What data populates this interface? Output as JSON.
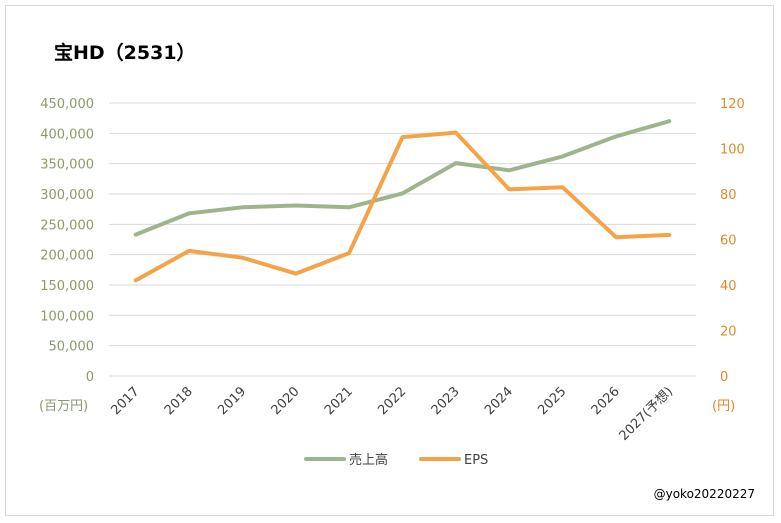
{
  "title": "宝HD（2531）",
  "credit": "@yoko20220227",
  "colors": {
    "sales": "#9fb48c",
    "eps": "#f5a349",
    "left_axis_text": "#8c9a6a",
    "right_axis_text": "#e08a2a",
    "grid": "#d9d9d9"
  },
  "chart_data": {
    "type": "line",
    "categories": [
      "2017",
      "2018",
      "2019",
      "2020",
      "2021",
      "2022",
      "2023",
      "2024",
      "2025",
      "2026",
      "2027(予想)"
    ],
    "series": [
      {
        "name": "売上高",
        "axis": "left",
        "values": [
          233000,
          268000,
          278000,
          281000,
          278000,
          301000,
          351000,
          339000,
          362000,
          395000,
          420000
        ]
      },
      {
        "name": "EPS",
        "axis": "right",
        "values": [
          42,
          55,
          52,
          45,
          54,
          105,
          107,
          82,
          83,
          61,
          62
        ]
      }
    ],
    "y_left": {
      "unit": "(百万円)",
      "ylim": [
        0,
        450000
      ],
      "ticks": [
        "0",
        "50,000",
        "100,000",
        "150,000",
        "200,000",
        "250,000",
        "300,000",
        "350,000",
        "400,000",
        "450,000"
      ]
    },
    "y_right": {
      "unit": "(円)",
      "ylim": [
        0,
        120
      ],
      "ticks": [
        "0",
        "20",
        "40",
        "60",
        "80",
        "100",
        "120"
      ]
    },
    "grid": true,
    "legend_position": "bottom"
  }
}
